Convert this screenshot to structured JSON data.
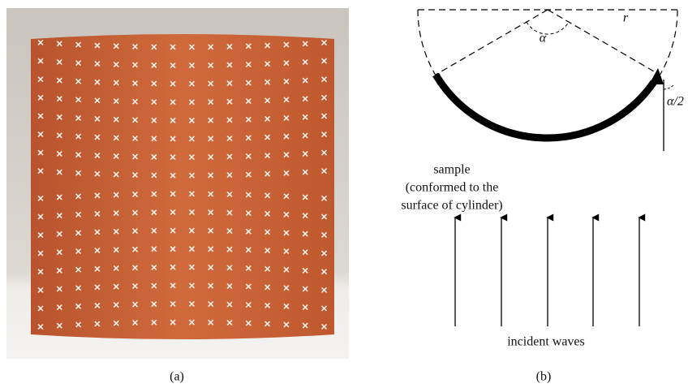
{
  "panel_a": {
    "caption": "(a)"
  },
  "panel_b": {
    "caption": "(b)",
    "angle_label": "α",
    "radius_label": "r",
    "half_angle_label": "α/2",
    "sample_label": [
      "sample",
      "(conformed to the",
      "surface of cylinder)"
    ],
    "waves_label": "incident waves"
  }
}
